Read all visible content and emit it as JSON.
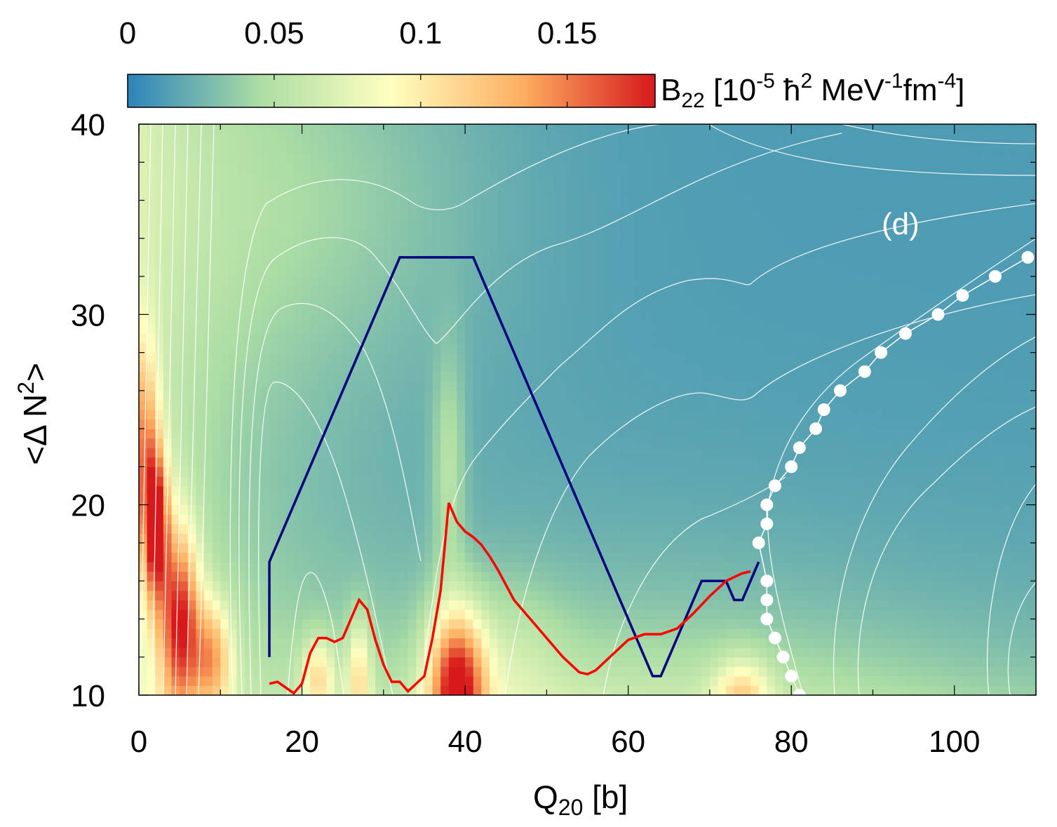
{
  "chart_data": {
    "type": "heatmap",
    "panel_label": "(d)",
    "xlabel": "Q",
    "xlabel_sub": "20",
    "xlabel_unit": " [b]",
    "ylabel": "<Δ N",
    "ylabel_sup": "2",
    "ylabel_end": ">",
    "xlim": [
      0,
      110
    ],
    "ylim": [
      10,
      40
    ],
    "x_ticks": [
      0,
      20,
      40,
      60,
      80,
      100
    ],
    "y_ticks": [
      10,
      20,
      30,
      40
    ],
    "colorbar": {
      "range": [
        0,
        0.18
      ],
      "ticks": [
        0,
        0.05,
        0.1,
        0.15
      ],
      "tick_labels": [
        "0",
        "0.05",
        "0.1",
        "0.15"
      ],
      "label_main": "B",
      "label_sub": "22",
      "label_rest": " [10",
      "label_exp1": "-5",
      "label_hbar": " ħ",
      "label_exp2": "2",
      "label_mev": " MeV",
      "label_exp3": "-1",
      "label_fm": "fm",
      "label_exp4": "-4",
      "label_close": "]",
      "colormap": [
        "#2b83ba",
        "#abdda4",
        "#ffffbf",
        "#fdae61",
        "#d7191c"
      ]
    },
    "series": [
      {
        "name": "blue path",
        "color": "#000080",
        "x": [
          16,
          16,
          32,
          33,
          40,
          41,
          63,
          64,
          69,
          72,
          73,
          74,
          76
        ],
        "y": [
          12,
          17,
          33,
          33,
          33,
          33,
          11,
          11,
          16,
          16,
          15,
          15,
          17
        ]
      },
      {
        "name": "red path",
        "color": "#ff0000",
        "x": [
          16,
          17,
          19,
          20,
          21,
          22,
          23,
          24,
          25,
          26,
          27,
          28,
          29,
          30,
          31,
          32,
          33,
          34,
          35,
          36,
          37,
          38,
          39,
          40,
          41,
          42,
          43,
          44,
          46,
          48,
          50,
          52,
          54,
          55,
          56,
          58,
          60,
          62,
          64,
          66,
          68,
          70,
          72,
          74,
          75
        ],
        "y": [
          10.6,
          10.7,
          10.1,
          10.6,
          12.2,
          13.0,
          13.0,
          12.8,
          13.0,
          14.0,
          15.0,
          14.5,
          12.9,
          11.6,
          10.7,
          10.7,
          10.2,
          10.6,
          11.0,
          13.0,
          15.5,
          20.1,
          19.1,
          18.6,
          18.3,
          17.9,
          17.3,
          16.6,
          15.0,
          14.0,
          13.0,
          12.0,
          11.2,
          11.1,
          11.3,
          12.1,
          12.9,
          13.2,
          13.2,
          13.5,
          14.3,
          15.2,
          16.0,
          16.4,
          16.5
        ]
      },
      {
        "name": "white dots",
        "color": "#ffffff",
        "x": [
          81,
          80,
          79,
          78,
          77,
          77,
          77,
          76,
          77,
          77,
          78,
          80,
          81,
          83,
          84,
          86,
          89,
          91,
          94,
          98,
          101,
          105,
          109
        ],
        "y": [
          10,
          11,
          12,
          13,
          14,
          15,
          16,
          18,
          19,
          20,
          21,
          22,
          23,
          24,
          25,
          26,
          27,
          28,
          29,
          30,
          31,
          32,
          33
        ]
      }
    ]
  }
}
